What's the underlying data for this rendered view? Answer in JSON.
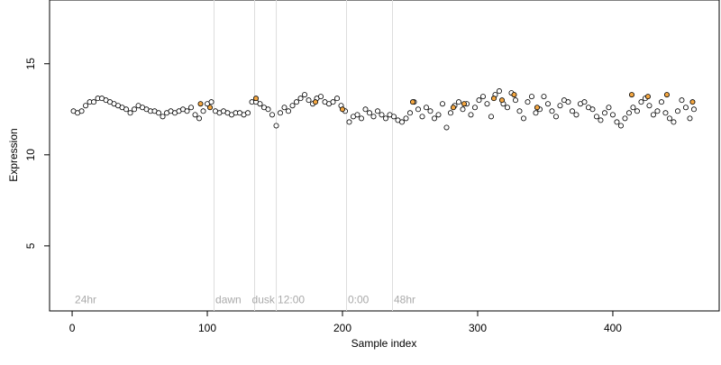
{
  "chart_data": {
    "type": "scatter",
    "xlabel": "Sample index",
    "ylabel": "Expression",
    "xlim": [
      -16.7,
      478.7
    ],
    "ylim": [
      1.43,
      18.5
    ],
    "xticks": [
      0,
      100,
      200,
      300,
      400
    ],
    "yticks": [
      5,
      10,
      15
    ],
    "vlines": [
      105,
      135,
      151,
      203,
      237
    ],
    "annotations": [
      {
        "x": 2,
        "y": 2,
        "label": "24hr"
      },
      {
        "x": 106,
        "y": 2,
        "label": "dawn"
      },
      {
        "x": 133,
        "y": 2,
        "label": "dusk"
      },
      {
        "x": 152,
        "y": 2,
        "label": "12:00"
      },
      {
        "x": 204,
        "y": 2,
        "label": "0:00"
      },
      {
        "x": 238,
        "y": 2,
        "label": "48hr"
      }
    ],
    "series": [
      {
        "color": "#ffffff",
        "x": [
          1,
          4,
          7,
          10,
          13,
          16,
          19,
          22,
          25,
          28,
          31,
          34,
          37,
          40,
          43,
          46,
          49,
          52,
          55,
          58,
          61,
          64,
          67,
          70,
          73,
          76,
          79,
          82,
          85,
          88,
          91,
          94,
          97,
          100,
          103,
          106,
          109,
          112,
          115,
          118,
          121,
          124,
          127,
          130,
          133,
          136,
          139,
          142,
          145,
          148,
          151,
          154,
          157,
          160,
          163,
          166,
          169,
          172,
          175,
          178,
          181,
          184,
          187,
          190,
          193,
          196,
          199,
          202,
          205,
          208,
          211,
          214,
          217,
          220,
          223,
          226,
          229,
          232,
          235,
          238,
          241,
          244,
          247,
          250,
          253,
          256,
          259,
          262,
          265,
          268,
          271,
          274,
          277,
          280,
          283,
          286,
          289,
          292,
          295,
          298,
          301,
          304,
          307,
          310,
          313,
          316,
          319,
          322,
          325,
          328,
          331,
          334,
          337,
          340,
          343,
          346,
          349,
          352,
          355,
          358,
          361,
          364,
          367,
          370,
          373,
          376,
          379,
          382,
          385,
          388,
          391,
          394,
          397,
          400,
          403,
          406,
          409,
          412,
          415,
          418,
          421,
          424,
          427,
          430,
          433,
          436,
          439,
          442,
          445,
          448,
          451,
          454,
          457,
          460
        ],
        "values": [
          12.4,
          12.3,
          12.4,
          12.7,
          12.9,
          12.9,
          13.1,
          13.1,
          13.0,
          12.9,
          12.8,
          12.7,
          12.6,
          12.5,
          12.3,
          12.5,
          12.7,
          12.6,
          12.5,
          12.4,
          12.4,
          12.3,
          12.1,
          12.3,
          12.4,
          12.3,
          12.4,
          12.5,
          12.4,
          12.6,
          12.2,
          12.0,
          12.4,
          12.8,
          12.9,
          12.4,
          12.3,
          12.4,
          12.3,
          12.2,
          12.3,
          12.3,
          12.2,
          12.3,
          12.9,
          12.9,
          12.8,
          12.6,
          12.5,
          12.2,
          11.6,
          12.3,
          12.6,
          12.4,
          12.7,
          12.9,
          13.1,
          13.3,
          13.0,
          12.8,
          13.1,
          13.2,
          12.9,
          12.8,
          12.9,
          13.1,
          12.7,
          12.4,
          11.8,
          12.1,
          12.2,
          12.0,
          12.5,
          12.3,
          12.1,
          12.4,
          12.2,
          12.0,
          12.2,
          12.1,
          11.9,
          11.8,
          12.0,
          12.3,
          12.9,
          12.5,
          12.1,
          12.6,
          12.4,
          12.0,
          12.2,
          12.8,
          11.5,
          12.3,
          12.7,
          12.9,
          12.5,
          12.8,
          12.2,
          12.6,
          13.0,
          13.2,
          12.8,
          12.1,
          13.3,
          13.5,
          12.8,
          12.6,
          13.4,
          13.0,
          12.4,
          12.0,
          12.9,
          13.2,
          12.3,
          12.5,
          13.2,
          12.8,
          12.4,
          12.1,
          12.7,
          13.0,
          12.9,
          12.4,
          12.2,
          12.8,
          12.9,
          12.6,
          12.5,
          12.1,
          11.9,
          12.3,
          12.6,
          12.2,
          11.8,
          11.6,
          12.0,
          12.3,
          12.6,
          12.4,
          12.9,
          13.1,
          12.7,
          12.2,
          12.4,
          12.9,
          12.3,
          12.0,
          11.8,
          12.4,
          13.0,
          12.6,
          12.0,
          12.5
        ]
      },
      {
        "color": "#f4a742",
        "x": [
          95,
          102,
          136,
          180,
          200,
          252,
          282,
          290,
          312,
          318,
          327,
          344,
          414,
          426,
          440,
          459
        ],
        "values": [
          12.8,
          12.6,
          13.1,
          12.9,
          12.5,
          12.9,
          12.6,
          12.8,
          13.1,
          13.0,
          13.3,
          12.6,
          13.3,
          13.2,
          13.3,
          12.9
        ]
      }
    ]
  }
}
